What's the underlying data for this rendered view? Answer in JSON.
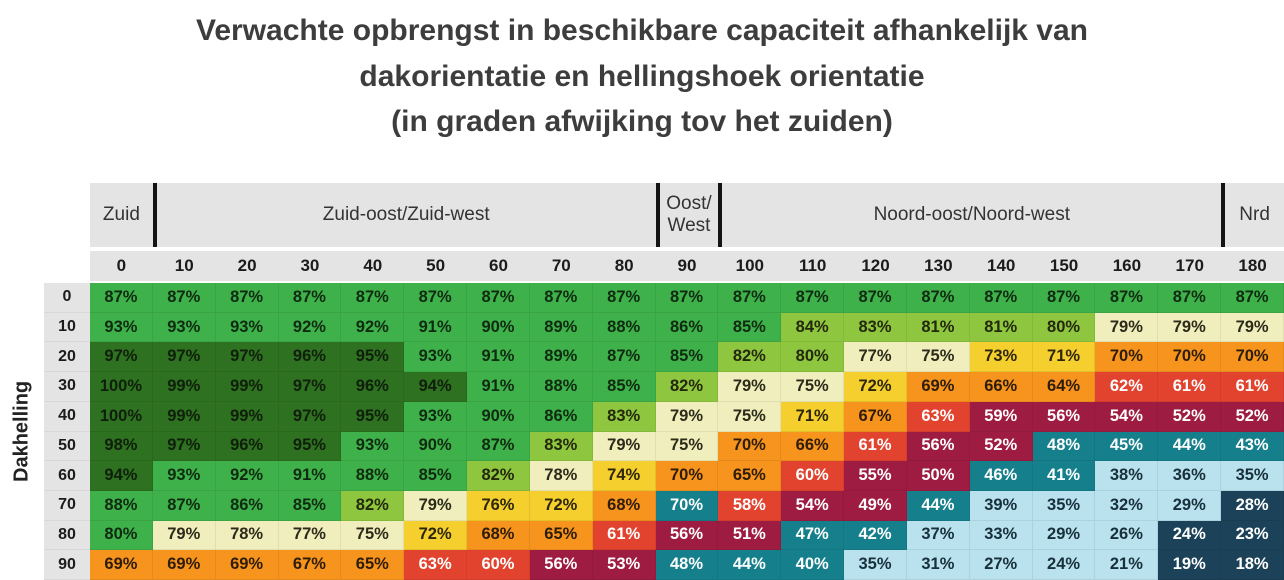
{
  "title": {
    "line1": "Verwachte opbrengst in beschikbare capaciteit afhankelijk van",
    "line2": "dakorientatie en hellingshoek orientatie",
    "line3": "(in graden afwijking tov het zuiden)"
  },
  "chart_data": {
    "type": "heatmap",
    "title": "Verwachte opbrengst in beschikbare capaciteit afhankelijk van dakorientatie en hellingshoek orientatie (in graden afwijking tov het zuiden)",
    "unit": "%",
    "y_axis": "Dakhelling",
    "x_label_groups": [
      {
        "label": "Zuid",
        "span": 1
      },
      {
        "label": "Zuid-oost/Zuid-west",
        "span": 8
      },
      {
        "label": "Oost/ West",
        "span": 1
      },
      {
        "label": "Noord-oost/Noord-west",
        "span": 8
      },
      {
        "label": "Nrd",
        "span": 1
      }
    ],
    "x_ticks": [
      "0",
      "10",
      "20",
      "30",
      "40",
      "50",
      "60",
      "70",
      "80",
      "90",
      "100",
      "110",
      "120",
      "130",
      "140",
      "150",
      "160",
      "170",
      "180"
    ],
    "y_ticks": [
      "0",
      "10",
      "20",
      "30",
      "40",
      "50",
      "60",
      "70",
      "80",
      "90"
    ],
    "values": [
      [
        87,
        87,
        87,
        87,
        87,
        87,
        87,
        87,
        87,
        87,
        87,
        87,
        87,
        87,
        87,
        87,
        87,
        87,
        87
      ],
      [
        93,
        93,
        93,
        92,
        92,
        91,
        90,
        89,
        88,
        86,
        85,
        84,
        83,
        81,
        81,
        80,
        79,
        79,
        79
      ],
      [
        97,
        97,
        97,
        96,
        95,
        93,
        91,
        89,
        87,
        85,
        82,
        80,
        77,
        75,
        73,
        71,
        70,
        70,
        70
      ],
      [
        100,
        99,
        99,
        97,
        96,
        94,
        91,
        88,
        85,
        82,
        79,
        75,
        72,
        69,
        66,
        64,
        62,
        61,
        61
      ],
      [
        100,
        99,
        99,
        97,
        95,
        93,
        90,
        86,
        83,
        79,
        75,
        71,
        67,
        63,
        59,
        56,
        54,
        52,
        52
      ],
      [
        98,
        97,
        96,
        95,
        93,
        90,
        87,
        83,
        79,
        75,
        70,
        66,
        61,
        56,
        52,
        48,
        45,
        44,
        43
      ],
      [
        94,
        93,
        92,
        91,
        88,
        85,
        82,
        78,
        74,
        70,
        65,
        60,
        55,
        50,
        46,
        41,
        38,
        36,
        35
      ],
      [
        88,
        87,
        86,
        85,
        82,
        79,
        76,
        72,
        68,
        70,
        58,
        54,
        49,
        44,
        39,
        35,
        32,
        29,
        28
      ],
      [
        80,
        79,
        78,
        77,
        75,
        72,
        68,
        65,
        61,
        56,
        51,
        47,
        42,
        37,
        33,
        29,
        26,
        24,
        23
      ],
      [
        69,
        69,
        69,
        67,
        65,
        63,
        60,
        56,
        53,
        48,
        44,
        40,
        35,
        31,
        27,
        24,
        21,
        19,
        18
      ]
    ],
    "cell_colors": [
      [
        "G",
        "G",
        "G",
        "G",
        "G",
        "G",
        "G",
        "G",
        "G",
        "G",
        "G",
        "G",
        "G",
        "G",
        "G",
        "G",
        "G",
        "G",
        "G"
      ],
      [
        "G",
        "G",
        "G",
        "G",
        "G",
        "G",
        "G",
        "G",
        "G",
        "G",
        "G",
        "LG",
        "LG",
        "LG",
        "LG",
        "LG",
        "CR",
        "CR",
        "CR"
      ],
      [
        "DG",
        "DG",
        "DG",
        "DG",
        "DG",
        "G",
        "G",
        "G",
        "G",
        "G",
        "LG",
        "LG",
        "CR",
        "CR",
        "Y",
        "Y",
        "O",
        "O",
        "O"
      ],
      [
        "DG",
        "DG",
        "DG",
        "DG",
        "DG",
        "DG",
        "G",
        "G",
        "G",
        "LG",
        "CR",
        "CR",
        "Y",
        "O",
        "O",
        "O",
        "R",
        "R",
        "R"
      ],
      [
        "DG",
        "DG",
        "DG",
        "DG",
        "DG",
        "G",
        "G",
        "G",
        "LG",
        "CR",
        "CR",
        "Y",
        "O",
        "R",
        "M",
        "M",
        "M",
        "M",
        "M"
      ],
      [
        "DG",
        "DG",
        "DG",
        "DG",
        "G",
        "G",
        "G",
        "LG",
        "CR",
        "CR",
        "O",
        "O",
        "R",
        "M",
        "M",
        "T",
        "T",
        "T",
        "T"
      ],
      [
        "DG",
        "G",
        "G",
        "G",
        "G",
        "G",
        "LG",
        "CR",
        "Y",
        "O",
        "O",
        "R",
        "M",
        "M",
        "T",
        "T",
        "LB",
        "LB",
        "LB"
      ],
      [
        "G",
        "G",
        "G",
        "G",
        "LG",
        "CR",
        "Y",
        "Y",
        "O",
        "T",
        "R",
        "M",
        "M",
        "T",
        "LB",
        "LB",
        "LB",
        "LB",
        "N"
      ],
      [
        "G",
        "CR",
        "CR",
        "CR",
        "CR",
        "Y",
        "O",
        "O",
        "R",
        "M",
        "M",
        "T",
        "T",
        "LB",
        "LB",
        "LB",
        "LB",
        "N",
        "N"
      ],
      [
        "O",
        "O",
        "O",
        "O",
        "O",
        "R",
        "R",
        "M",
        "M",
        "T",
        "T",
        "T",
        "LB",
        "LB",
        "LB",
        "LB",
        "LB",
        "N",
        "N"
      ]
    ],
    "palette": {
      "DG": {
        "bg": "#2e7120",
        "fg": "#0f1f0a"
      },
      "G": {
        "bg": "#3fb14b",
        "fg": "#0e2b10"
      },
      "LG": {
        "bg": "#8fc640",
        "fg": "#23290a"
      },
      "CR": {
        "bg": "#f1eebd",
        "fg": "#2b2b1a"
      },
      "Y": {
        "bg": "#f4cf2d",
        "fg": "#2e2608"
      },
      "O": {
        "bg": "#f6941e",
        "fg": "#2e1c05"
      },
      "R": {
        "bg": "#e2432f",
        "fg": "#ffffff"
      },
      "M": {
        "bg": "#9e1c42",
        "fg": "#ffffff"
      },
      "T": {
        "bg": "#15808c",
        "fg": "#ffffff"
      },
      "LB": {
        "bg": "#b9e1ee",
        "fg": "#17303c"
      },
      "N": {
        "bg": "#1b4258",
        "fg": "#ffffff"
      }
    },
    "legend": "off",
    "grid": "off"
  }
}
